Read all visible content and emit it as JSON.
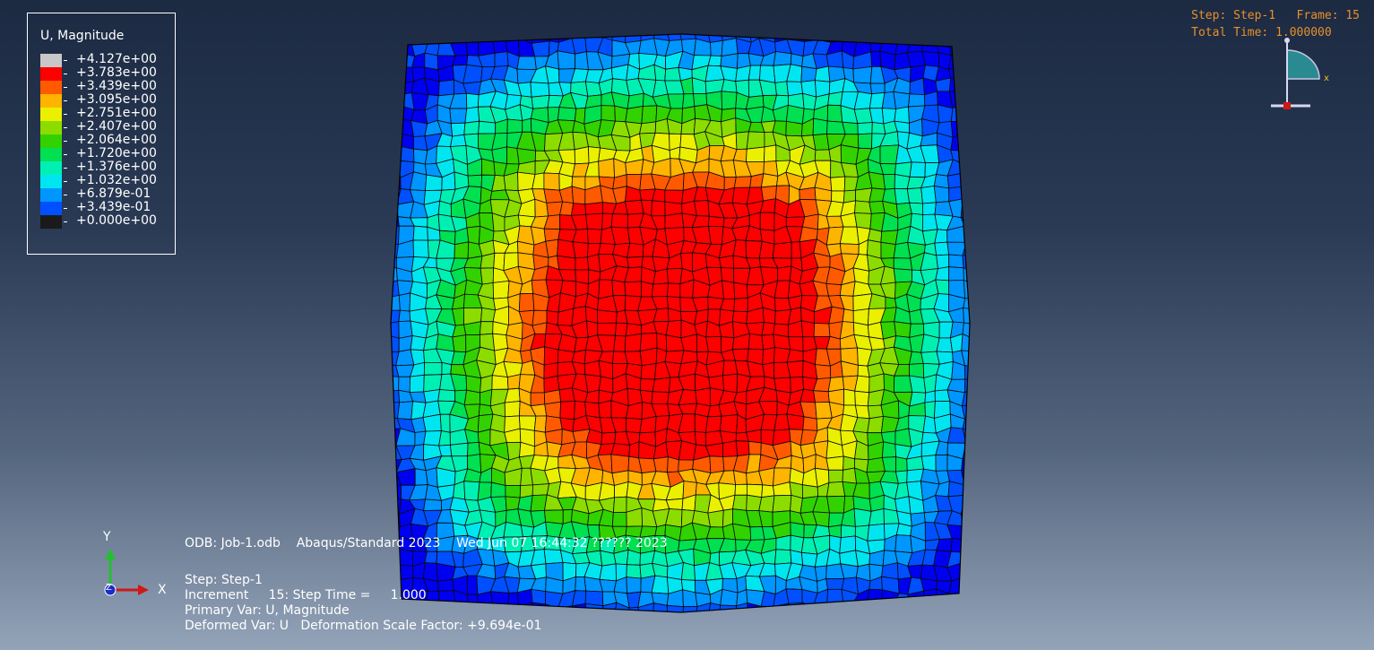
{
  "legend": {
    "title": "U, Magnitude",
    "entries": [
      {
        "value": "+4.127e+00",
        "color": "#c8c8c8"
      },
      {
        "value": "+3.783e+00",
        "color": "#ff0000"
      },
      {
        "value": "+3.439e+00",
        "color": "#ff5a00"
      },
      {
        "value": "+3.095e+00",
        "color": "#ffb400"
      },
      {
        "value": "+2.751e+00",
        "color": "#eaf000"
      },
      {
        "value": "+2.407e+00",
        "color": "#8cdc00"
      },
      {
        "value": "+2.064e+00",
        "color": "#32d200"
      },
      {
        "value": "+1.720e+00",
        "color": "#00e050"
      },
      {
        "value": "+1.376e+00",
        "color": "#00f0b4"
      },
      {
        "value": "+1.032e+00",
        "color": "#00e6f0"
      },
      {
        "value": "+6.879e-01",
        "color": "#0096ff"
      },
      {
        "value": "+3.439e-01",
        "color": "#0050ff"
      },
      {
        "value": "+0.000e+00",
        "color": "#0000f0"
      }
    ]
  },
  "status": {
    "step_line": "Step: Step-1   Frame: 15",
    "time_line": "Total Time: 1.000000"
  },
  "info": {
    "odb_line": "ODB: Job-1.odb    Abaqus/Standard 2023    Wed Jun 07 16:44:32 ?????? 2023",
    "step": "Step: Step-1",
    "increment": "Increment     15: Step Time =     1.000",
    "primary_var": "Primary Var: U, Magnitude",
    "deformed_var": "Deformed Var: U   Deformation Scale Factor: +9.694e-01"
  },
  "triad": {
    "y_label": "Y",
    "x_label": "X",
    "z_label": "Z"
  },
  "mini_triad": {
    "x_label": "x"
  },
  "contour": {
    "center_value": 3.95,
    "edge_value": 0.25
  }
}
